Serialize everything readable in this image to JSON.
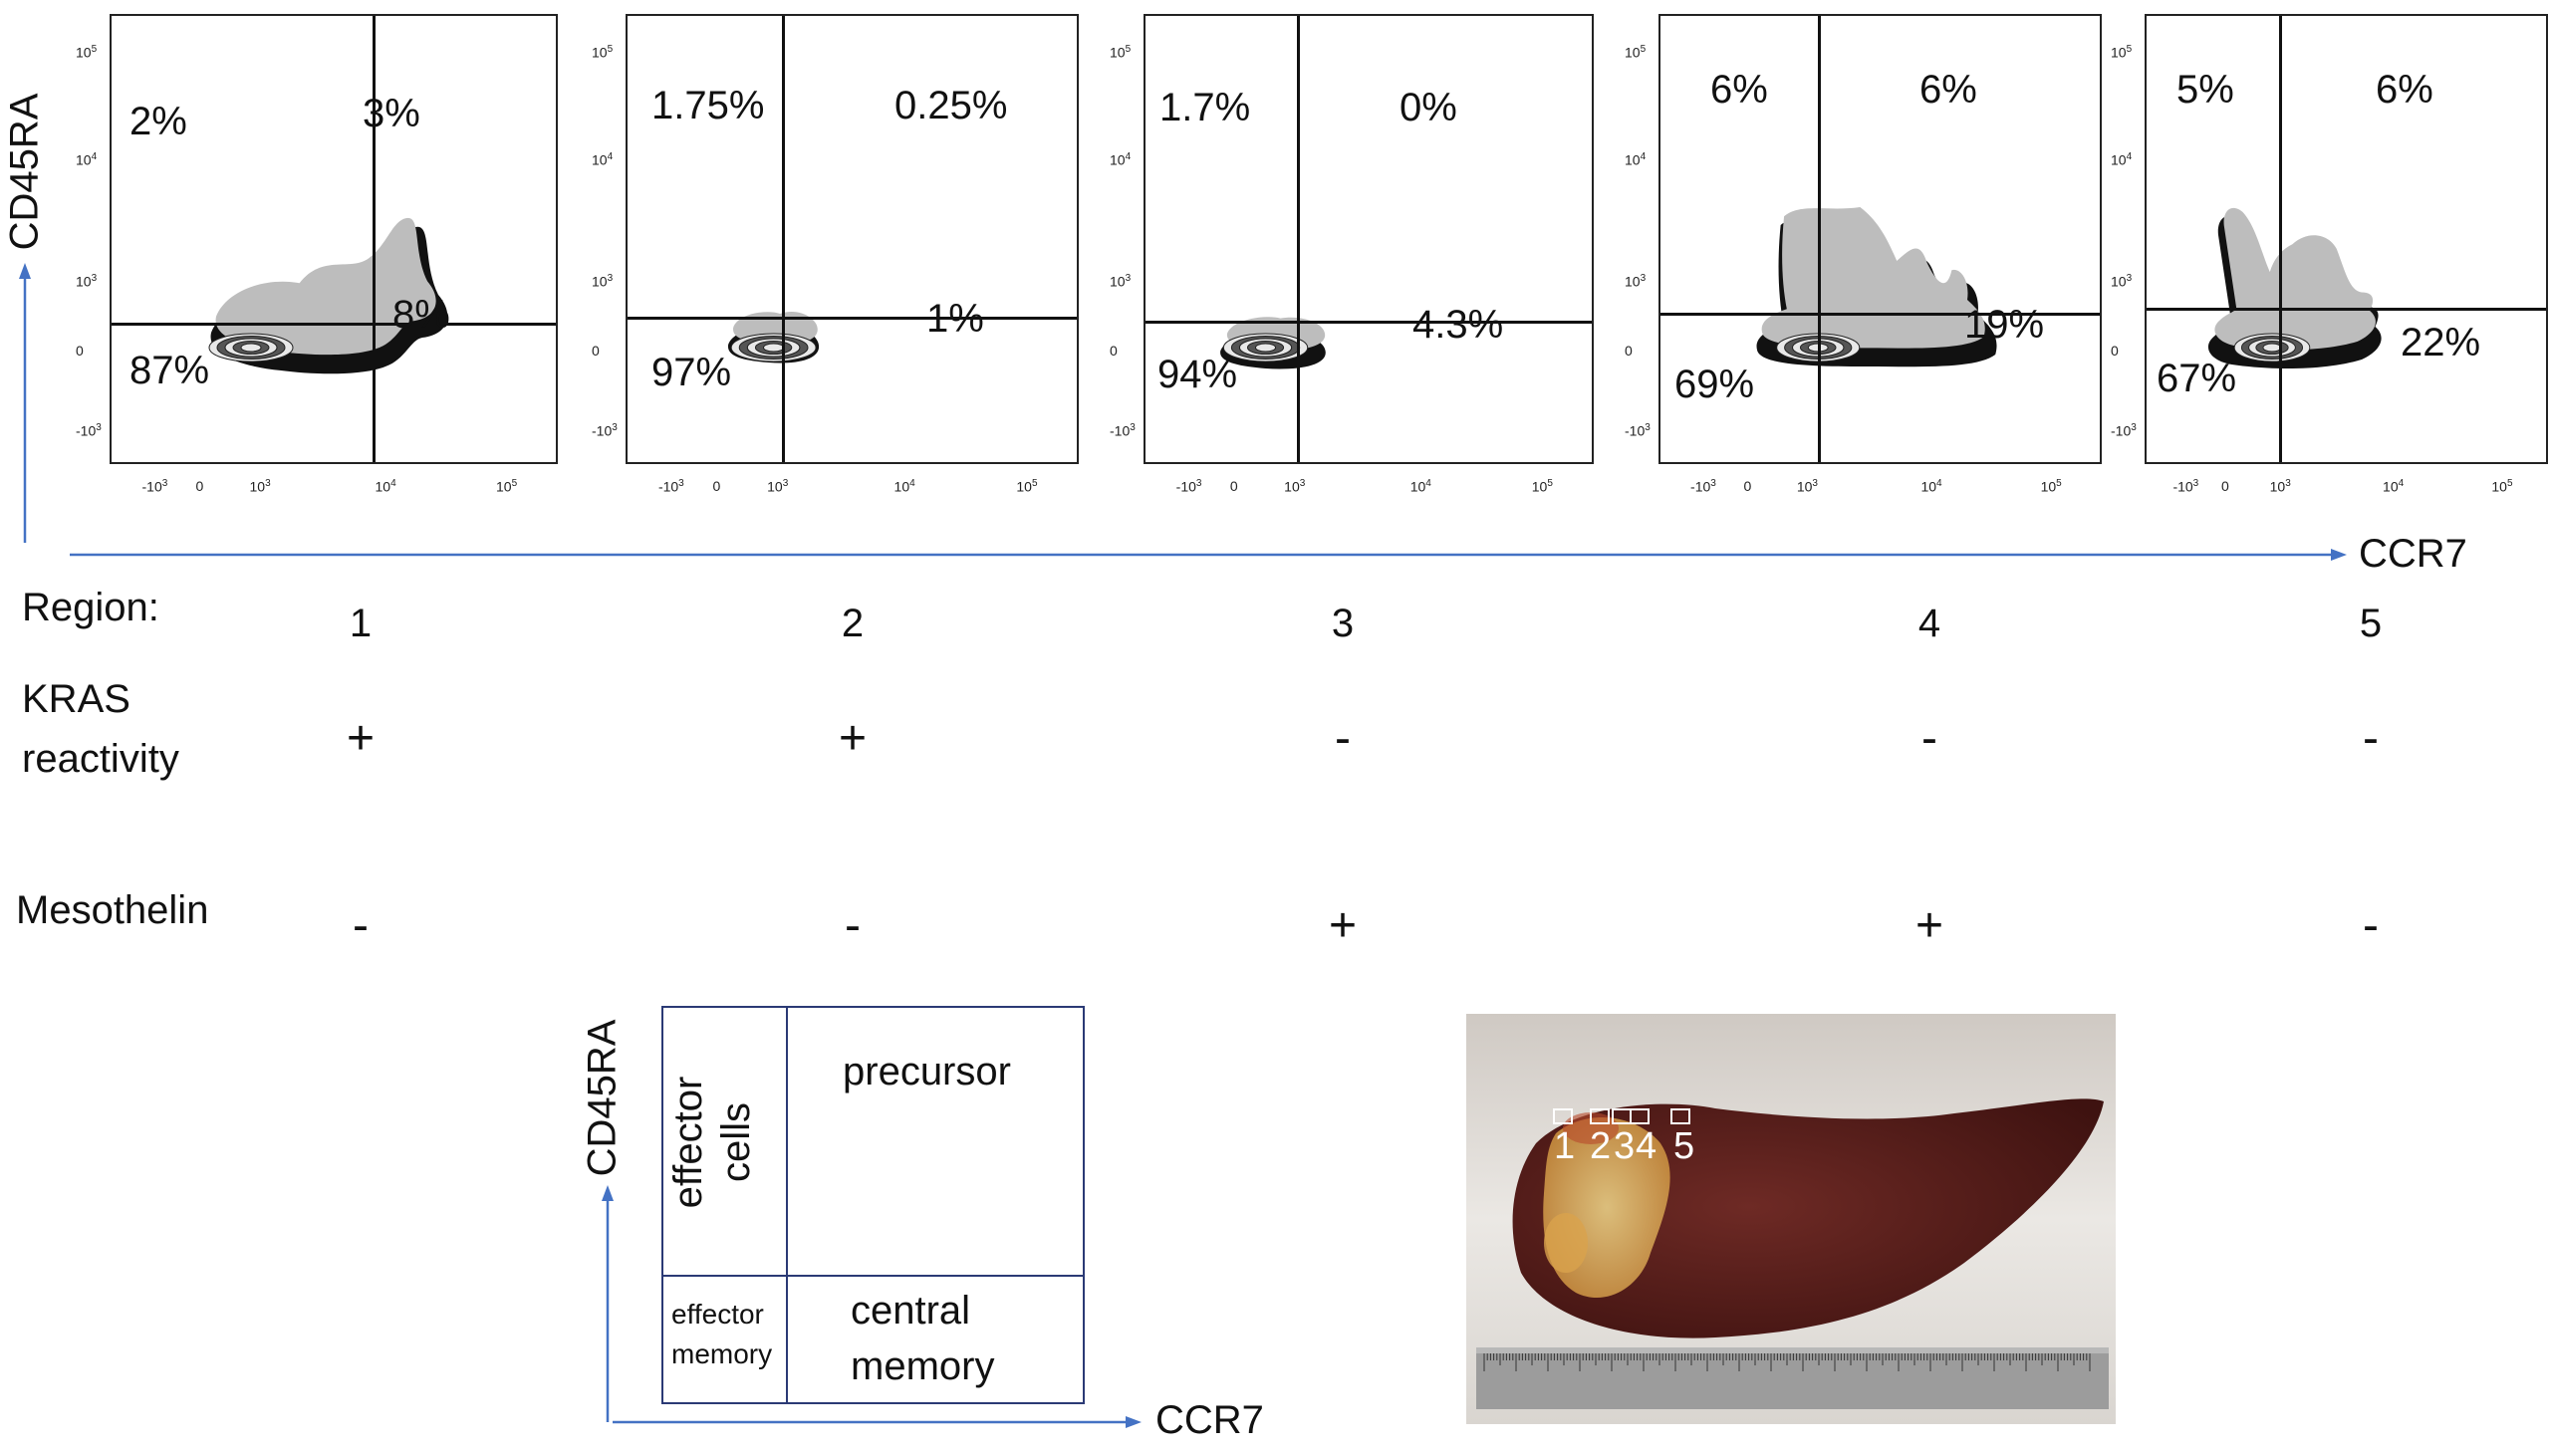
{
  "colors": {
    "axis_arrow": "#4472c4",
    "plot_frame": "#222222",
    "gate_line": "#111111",
    "legend_frame": "#2b3a75",
    "liver": "#5a1a1a",
    "photo_bg": "#e9e6e3"
  },
  "axis_labels": {
    "y": "CD45RA",
    "x": "CCR7"
  },
  "ticks": {
    "y": [
      "10^5",
      "10^4",
      "10^3",
      "0",
      "-10^3"
    ],
    "x": [
      "-10^3",
      "0",
      "10^3",
      "10^4",
      "10^5"
    ]
  },
  "chart_data": {
    "type": "scatter",
    "subtype": "flow cytometry contour plots",
    "xlabel": "CCR7",
    "ylabel": "CD45RA",
    "x_scale": "biexponential",
    "y_scale": "biexponential",
    "xlim": [
      "-10^3",
      "10^5"
    ],
    "ylim": [
      "-10^3",
      "10^5"
    ],
    "panels": [
      {
        "region": "1",
        "upper_left": "2%",
        "upper_right": "3%",
        "lower_left": "87%",
        "lower_right": "8%"
      },
      {
        "region": "2",
        "upper_left": "1.75%",
        "upper_right": "0.25%",
        "lower_left": "97%",
        "lower_right": "1%"
      },
      {
        "region": "3",
        "upper_left": "1.7%",
        "upper_right": "0%",
        "lower_left": "94%",
        "lower_right": "4.3%"
      },
      {
        "region": "4",
        "upper_left": "6%",
        "upper_right": "6%",
        "lower_left": "69%",
        "lower_right": "19%"
      },
      {
        "region": "5",
        "upper_left": "5%",
        "upper_right": "6%",
        "lower_left": "67%",
        "lower_right": "22%"
      }
    ]
  },
  "table": {
    "region_label": "Region:",
    "regions": [
      "1",
      "2",
      "3",
      "4",
      "5"
    ],
    "kras_label_line1": "KRAS",
    "kras_label_line2": "reactivity",
    "kras": [
      "+",
      "+",
      "-",
      "-",
      "-"
    ],
    "meso_label": "Mesothelin",
    "meso": [
      "-",
      "-",
      "+",
      "+",
      "-"
    ]
  },
  "legend": {
    "y_label": "CD45RA",
    "x_label": "CCR7",
    "upper_left_line1": "effector",
    "upper_left_line2": "cells",
    "upper_right": "precursor",
    "lower_left_line1": "effector",
    "lower_left_line2": "memory",
    "lower_right_line1": "central",
    "lower_right_line2": "memory"
  },
  "photo": {
    "region_marks": [
      "1",
      "2",
      "3",
      "4",
      "5"
    ]
  }
}
